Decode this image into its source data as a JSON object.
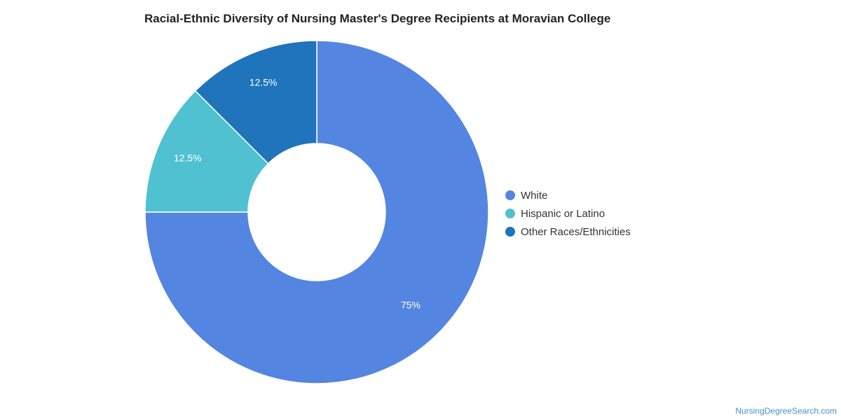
{
  "chart_data": {
    "type": "pie",
    "donut": true,
    "title": "Racial-Ethnic Diversity of Nursing Master's Degree Recipients at Moravian College",
    "categories": [
      "White",
      "Hispanic or Latino",
      "Other Races/Ethnicities"
    ],
    "values": [
      75,
      12.5,
      12.5
    ],
    "labels": [
      "75%",
      "12.5%",
      "12.5%"
    ],
    "colors": [
      "#5485e1",
      "#4fc1d0",
      "#1f74bb"
    ],
    "legend_position": "right",
    "watermark": "NursingDegreeSearch.com"
  }
}
